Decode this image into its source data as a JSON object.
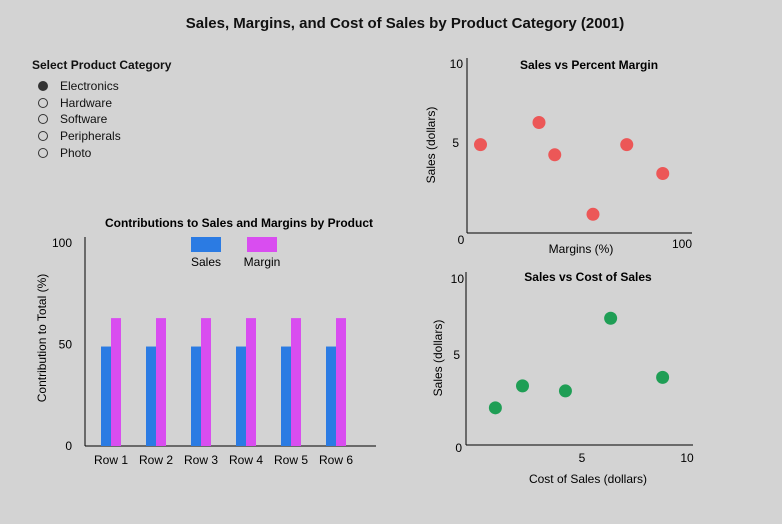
{
  "title": "Sales, Margins, and Cost of Sales by Product Category (2001)",
  "selector": {
    "label": "Select Product Category",
    "options": [
      "Electronics",
      "Hardware",
      "Software",
      "Peripherals",
      "Photo"
    ],
    "selected": "Electronics"
  },
  "chart_data": [
    {
      "type": "bar",
      "title": "Contributions to Sales and Margins by Product",
      "ylabel": "Contribution to Total (%)",
      "xlabel": "",
      "categories": [
        "Row 1",
        "Row 2",
        "Row 3",
        "Row 4",
        "Row 5",
        "Row 6"
      ],
      "series": [
        {
          "name": "Sales",
          "color": "#2b7be3",
          "values": [
            49,
            49,
            49,
            49,
            49,
            49
          ]
        },
        {
          "name": "Margin",
          "color": "#d94df0",
          "values": [
            63,
            63,
            63,
            63,
            63,
            63
          ]
        }
      ],
      "ylim": [
        0,
        105
      ],
      "yticks": [
        "0",
        "50",
        "100"
      ],
      "legend": "top-center"
    },
    {
      "type": "scatter",
      "title": "Sales vs Percent Margin",
      "xlabel": "Margins (%)",
      "ylabel": "Sales (dollars)",
      "color": "#ec5757",
      "xlim": [
        0,
        100
      ],
      "ylim": [
        0,
        10
      ],
      "xticks": [
        "0",
        "100"
      ],
      "yticks": [
        "5",
        "10"
      ],
      "points": [
        {
          "x": 6,
          "y": 5.2
        },
        {
          "x": 32,
          "y": 6.5
        },
        {
          "x": 39,
          "y": 4.6
        },
        {
          "x": 56,
          "y": 1.1
        },
        {
          "x": 71,
          "y": 5.2
        },
        {
          "x": 87,
          "y": 3.5
        }
      ]
    },
    {
      "type": "scatter",
      "title": "Sales vs Cost of Sales",
      "xlabel": "Cost of Sales (dollars)",
      "ylabel": "Sales (dollars)",
      "color": "#1f9e55",
      "xlim": [
        0,
        10
      ],
      "ylim": [
        0,
        10
      ],
      "xticks": [
        "5",
        "10"
      ],
      "yticks": [
        "0",
        "5",
        "10"
      ],
      "points": [
        {
          "x": 1.3,
          "y": 2.2
        },
        {
          "x": 2.5,
          "y": 3.5
        },
        {
          "x": 4.4,
          "y": 3.2
        },
        {
          "x": 6.4,
          "y": 7.5
        },
        {
          "x": 8.7,
          "y": 4.0
        }
      ]
    }
  ]
}
